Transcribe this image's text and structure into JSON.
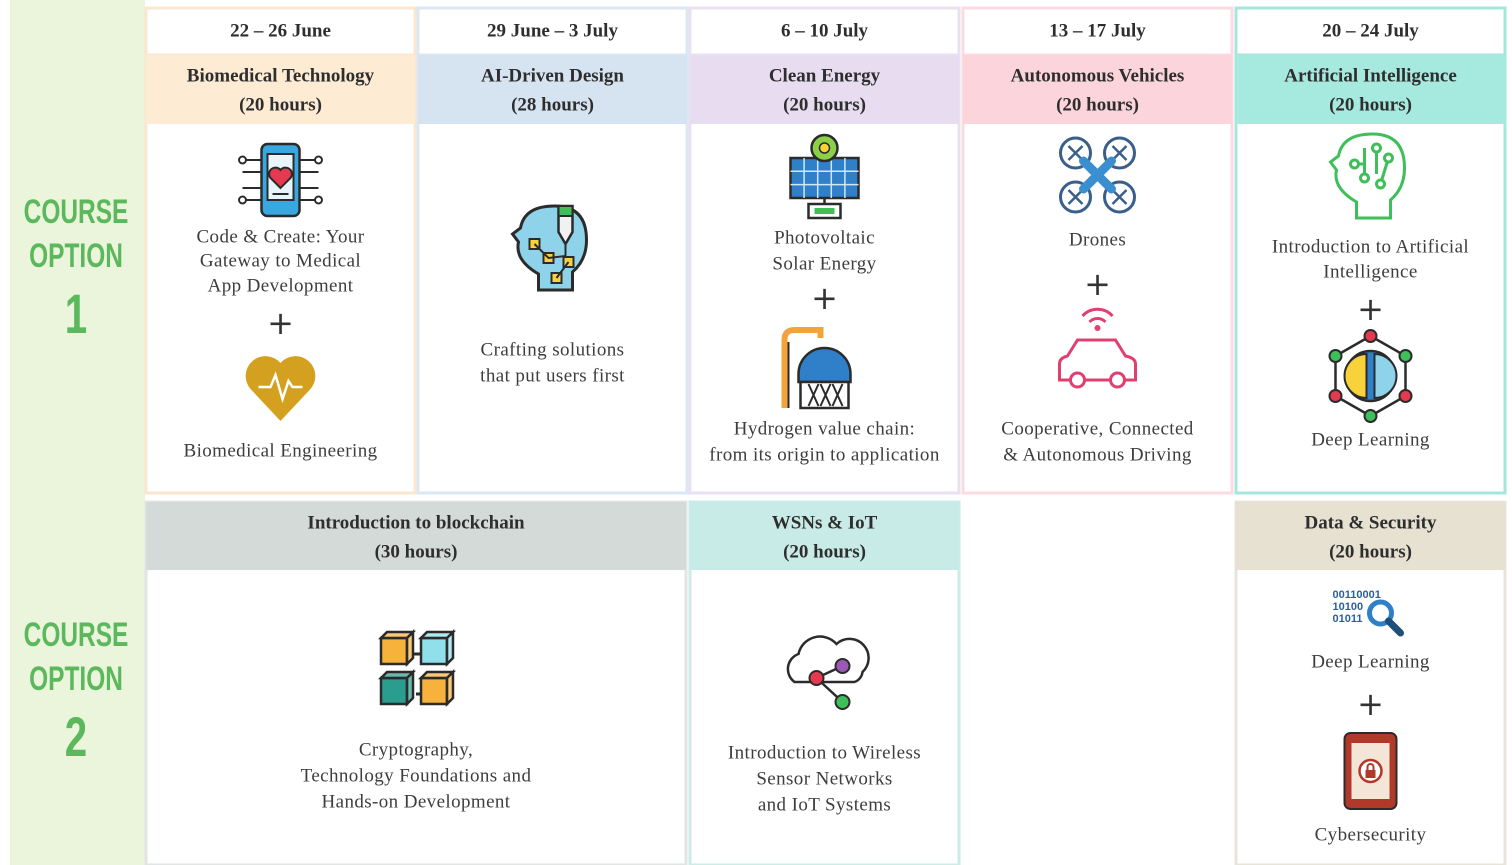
{
  "schedule": {
    "options": [
      {
        "line1": "COURSE",
        "line2": "OPTION",
        "number": "1"
      },
      {
        "line1": "COURSE",
        "line2": "OPTION",
        "number": "2"
      }
    ],
    "weeks": [
      "22  – 26 June",
      "29 June – 3 July",
      "6 – 10 July",
      "13 – 17 July",
      "20 – 24 July"
    ],
    "plus": "+",
    "option1": [
      {
        "title": "Biomedical Technology",
        "hours": "(20 hours)",
        "color": "#fdebd4",
        "border": "#fbe7cf",
        "items": [
          [
            "Code & Create: Your",
            "Gateway to Medical",
            "App Development"
          ],
          [
            "Biomedical Engineering"
          ]
        ]
      },
      {
        "title": "AI-Driven Design",
        "hours": "(28 hours)",
        "color": "#d6e4f1",
        "border": "#dbe7f3",
        "items": [
          [
            "Crafting solutions",
            "that put users first"
          ]
        ]
      },
      {
        "title": "Clean Energy",
        "hours": "(20 hours)",
        "color": "#e7dcf0",
        "border": "#e9e0f1",
        "items": [
          [
            "Photovoltaic",
            "Solar Energy"
          ],
          [
            "Hydrogen value chain:",
            "from its origin to application"
          ]
        ]
      },
      {
        "title": "Autonomous Vehicles",
        "hours": "(20 hours)",
        "color": "#fcd5dc",
        "border": "#fbdbe1",
        "items": [
          [
            "Drones"
          ],
          [
            "Cooperative, Connected",
            "& Autonomous Driving"
          ]
        ]
      },
      {
        "title": "Artificial Intelligence",
        "hours": "(20 hours)",
        "color": "#a6e9df",
        "border": "#a6e6dc",
        "items": [
          [
            "Introduction to Artificial",
            "Intelligence"
          ],
          [
            "Deep Learning"
          ]
        ]
      }
    ],
    "option2": [
      {
        "title": "Introduction to blockchain",
        "hours": "(30 hours)",
        "color": "#d4dad7",
        "border": "#e1e5e3",
        "items": [
          [
            "Cryptography,",
            "Technology Foundations and",
            "Hands-on Development"
          ]
        ]
      },
      {
        "title": "WSNs & IoT",
        "hours": "(20 hours)",
        "color": "#c9ebe7",
        "border": "#cdebe7",
        "items": [
          [
            "Introduction to Wireless",
            "Sensor Networks",
            "and IoT Systems"
          ]
        ]
      },
      {
        "title": "Data & Security",
        "hours": "(20 hours)",
        "color": "#e7e1d2",
        "border": "#e9e4d8",
        "icon_text": [
          "00110001",
          "10100",
          "01011"
        ],
        "items": [
          [
            "Deep Learning"
          ],
          [
            "Cybersecurity"
          ]
        ]
      }
    ]
  }
}
